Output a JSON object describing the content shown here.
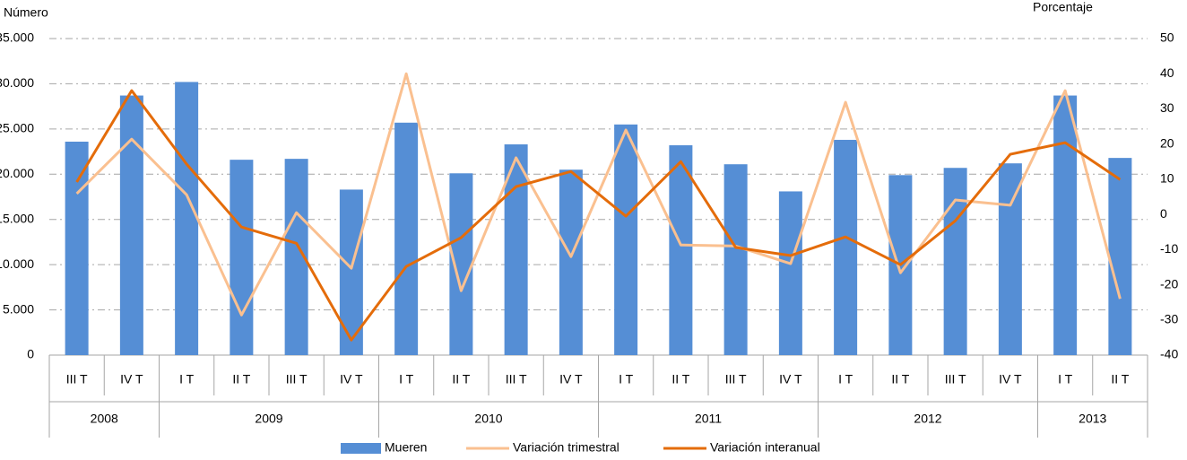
{
  "chart_data": {
    "type": "bar-line",
    "ylabel": "Número",
    "y2label": "Porcentaje",
    "categories": [
      "III T",
      "IV T",
      "I T",
      "II T",
      "III T",
      "IV T",
      "I T",
      "II T",
      "III T",
      "IV T",
      "I T",
      "II T",
      "III T",
      "IV T",
      "I T",
      "II T",
      "III T",
      "IV T",
      "I T",
      "II T"
    ],
    "groups": [
      "2008",
      null,
      "2009",
      null,
      null,
      null,
      "2010",
      null,
      null,
      null,
      "2011",
      null,
      null,
      null,
      "2012",
      null,
      null,
      null,
      "2013",
      null
    ],
    "series": [
      {
        "name": "Mueren",
        "type": "bar",
        "color": "#558ed5",
        "values": [
          23600,
          28700,
          30200,
          21600,
          21700,
          18300,
          25700,
          20100,
          23300,
          20500,
          25500,
          23200,
          21100,
          18100,
          23800,
          19900,
          20700,
          21200,
          28700,
          21800
        ]
      },
      {
        "name": "Variación trimestral",
        "type": "line",
        "axis": "y2",
        "color": "#fac090",
        "values": [
          5.9,
          21.4,
          5.6,
          -28.6,
          0.5,
          -15.3,
          40,
          -21.7,
          16.1,
          -12,
          24,
          -8.7,
          -9,
          -14,
          31.9,
          -16.6,
          4.1,
          2.6,
          35.2,
          -24
        ]
      },
      {
        "name": "Variación interanual",
        "type": "line",
        "axis": "y2",
        "color": "#e46c0a",
        "values": [
          9.2,
          35.2,
          14.3,
          -3.6,
          -8.2,
          -35.7,
          -14.8,
          -6.6,
          7.9,
          12.2,
          -0.5,
          15,
          -9.4,
          -11.7,
          -6.4,
          -14.3,
          -1.8,
          17.1,
          20.4,
          9.9
        ]
      }
    ],
    "ylim": [
      0,
      35000
    ],
    "yticks": [
      0,
      {
        "value": 5000,
        "label": "5.000"
      },
      {
        "value": 10000,
        "label": "10.000"
      },
      {
        "value": 15000,
        "label": "15.000"
      },
      {
        "value": 20000,
        "label": "20.000"
      },
      {
        "value": 25000,
        "label": "25.000"
      },
      {
        "value": 30000,
        "label": "30.000"
      },
      {
        "value": 35000,
        "label": "35.000"
      }
    ],
    "y2lim": [
      -40,
      50
    ],
    "y2ticks": [
      -40,
      -30,
      -20,
      -10,
      0,
      10,
      20,
      30,
      40,
      50
    ],
    "grid": true,
    "legend": "bottom"
  }
}
